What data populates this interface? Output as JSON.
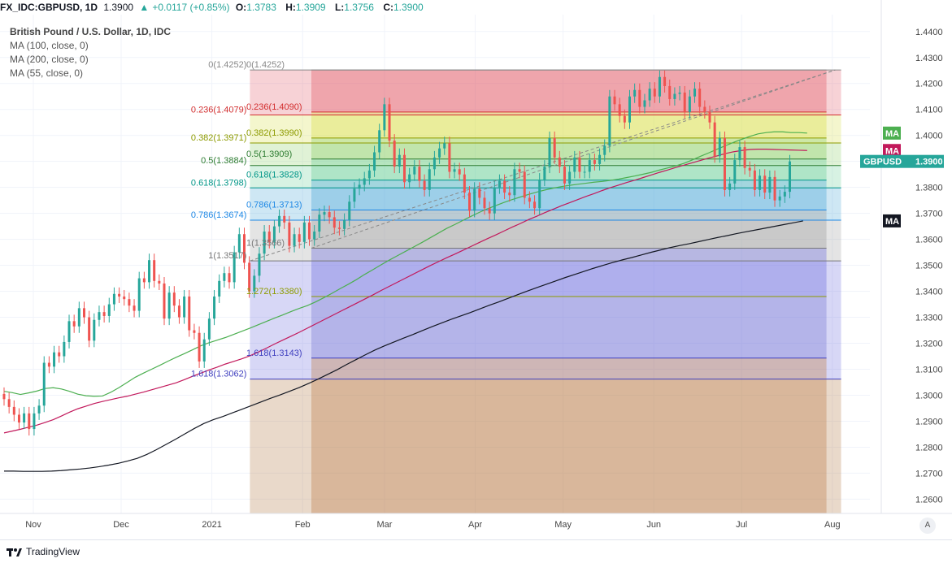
{
  "header": {
    "symbol": "FX_IDC:GBPUSD, 1D",
    "last": "1.3900",
    "change": "+0.0117 (+0.85%)",
    "open_label": "O:",
    "open": "1.3783",
    "high_label": "H:",
    "high": "1.3909",
    "low_label": "L:",
    "low": "1.3756",
    "close_label": "C:",
    "close": "1.3900"
  },
  "legend": {
    "title": "British Pound / U.S. Dollar, 1D, IDC",
    "ma100": "MA (100, close, 0)",
    "ma200": "MA (200, close, 0)",
    "ma55": "MA (55, close, 0)"
  },
  "footer": {
    "brand": "TradingView",
    "auto_label": "A"
  },
  "colors": {
    "up": "#26a69a",
    "down": "#ef5350",
    "ma55": "#4caf50",
    "ma100": "#c2185b",
    "ma200": "#131722"
  },
  "chart_data": {
    "type": "candlestick",
    "y_range": [
      1.2545,
      1.4465
    ],
    "x_range_days": [
      0,
      276
    ],
    "y_ticks": [
      "1.4400",
      "1.4300",
      "1.4200",
      "1.4100",
      "1.4000",
      "1.3900",
      "1.3800",
      "1.3700",
      "1.3600",
      "1.3500",
      "1.3400",
      "1.3300",
      "1.3200",
      "1.3100",
      "1.3000",
      "1.2900",
      "1.2800",
      "1.2700",
      "1.2600"
    ],
    "x_ticks": [
      {
        "label": "Nov",
        "day": 10
      },
      {
        "label": "Dec",
        "day": 40
      },
      {
        "label": "2021",
        "day": 71
      },
      {
        "label": "Feb",
        "day": 102
      },
      {
        "label": "Mar",
        "day": 130
      },
      {
        "label": "Apr",
        "day": 161
      },
      {
        "label": "May",
        "day": 191
      },
      {
        "label": "Jun",
        "day": 222
      },
      {
        "label": "Jul",
        "day": 252
      },
      {
        "label": "Aug",
        "day": 283
      }
    ],
    "price_badges": [
      {
        "label": "MA",
        "value": 1.4009,
        "color": "#4caf50"
      },
      {
        "label": "MA",
        "value": 1.3942,
        "color": "#c2185b"
      },
      {
        "label": "GBPUSD",
        "value": 1.39,
        "text": "1.3900",
        "color": "#26a69a"
      },
      {
        "label": "MA",
        "value": 1.3671,
        "color": "#131722"
      }
    ],
    "fib_left": {
      "x_start_day": 84,
      "x_end_day": 286,
      "levels": [
        {
          "label": "0(1.4252)",
          "value": 1.4252,
          "color": "#888888"
        },
        {
          "label": "0.236(1.4079)",
          "value": 1.4079,
          "color": "#d32f2f"
        },
        {
          "label": "0.382(1.3971)",
          "value": 1.3971,
          "color": "#8d9b00"
        },
        {
          "label": "0.5(1.3884)",
          "value": 1.3884,
          "color": "#2e7d32"
        },
        {
          "label": "0.618(1.3798)",
          "value": 1.3798,
          "color": "#009688"
        },
        {
          "label": "0.786(1.3674)",
          "value": 1.3674,
          "color": "#1e88e5"
        },
        {
          "label": "1(1.3517)",
          "value": 1.3517,
          "color": "#777777"
        },
        {
          "label": "1.618(1.3062)",
          "value": 1.3062,
          "color": "#3f3fbf"
        }
      ]
    },
    "fib_right": {
      "x_start_day": 105,
      "x_end_day": 281,
      "levels": [
        {
          "label": "0(1.4252)",
          "value": 1.4252,
          "color": "#888888"
        },
        {
          "label": "0.236(1.4090)",
          "value": 1.409,
          "color": "#d32f2f"
        },
        {
          "label": "0.382(1.3990)",
          "value": 1.399,
          "color": "#8d9b00"
        },
        {
          "label": "0.5(1.3909)",
          "value": 1.3909,
          "color": "#2e7d32"
        },
        {
          "label": "0.618(1.3828)",
          "value": 1.3828,
          "color": "#009688"
        },
        {
          "label": "0.786(1.3713)",
          "value": 1.3713,
          "color": "#1e88e5"
        },
        {
          "label": "1(1.3566)",
          "value": 1.3566,
          "color": "#777777"
        },
        {
          "label": "1.272(1.3380)",
          "value": 1.338,
          "color": "#8d9b00"
        },
        {
          "label": "1.618(1.3143)",
          "value": 1.3143,
          "color": "#3f3fbf"
        }
      ]
    },
    "trendlines": [
      {
        "p1": [
          84,
          1.3517
        ],
        "p2": [
          284,
          1.4252
        ]
      },
      {
        "p1": [
          105,
          1.3566
        ],
        "p2": [
          284,
          1.4252
        ]
      }
    ],
    "closes": [
      1.2985,
      1.2955,
      1.2925,
      1.2895,
      1.293,
      1.287,
      1.293,
      1.296,
      1.3125,
      1.311,
      1.3165,
      1.315,
      1.3205,
      1.3285,
      1.3265,
      1.3335,
      1.33,
      1.321,
      1.329,
      1.332,
      1.3305,
      1.335,
      1.339,
      1.338,
      1.337,
      1.3345,
      1.3325,
      1.345,
      1.3435,
      1.352,
      1.344,
      1.343,
      1.3295,
      1.3395,
      1.3345,
      1.33,
      1.338,
      1.325,
      1.324,
      1.313,
      1.3215,
      1.3295,
      1.338,
      1.344,
      1.347,
      1.3435,
      1.355,
      1.362,
      1.351,
      1.34,
      1.346,
      1.3545,
      1.363,
      1.359,
      1.365,
      1.369,
      1.3665,
      1.3575,
      1.362,
      1.359,
      1.3665,
      1.36,
      1.363,
      1.3695,
      1.3705,
      1.3685,
      1.3645,
      1.364,
      1.3675,
      1.3745,
      1.3795,
      1.381,
      1.3835,
      1.3865,
      1.3935,
      1.402,
      1.412,
      1.398,
      1.388,
      1.3925,
      1.382,
      1.385,
      1.388,
      1.3825,
      1.379,
      1.387,
      1.3915,
      1.395,
      1.397,
      1.386,
      1.387,
      1.385,
      1.378,
      1.371,
      1.3795,
      1.376,
      1.372,
      1.37,
      1.38,
      1.3825,
      1.378,
      1.377,
      1.387,
      1.386,
      1.376,
      1.3745,
      1.372,
      1.383,
      1.388,
      1.399,
      1.3915,
      1.388,
      1.3815,
      1.386,
      1.3915,
      1.386,
      1.386,
      1.3905,
      1.389,
      1.3925,
      1.396,
      1.415,
      1.412,
      1.4075,
      1.405,
      1.415,
      1.4175,
      1.411,
      1.4135,
      1.418,
      1.415,
      1.4225,
      1.419,
      1.414,
      1.416,
      1.4165,
      1.409,
      1.415,
      1.418,
      1.411,
      1.409,
      1.405,
      1.392,
      1.399,
      1.379,
      1.3815,
      1.3905,
      1.3955,
      1.3875,
      1.3865,
      1.379,
      1.3845,
      1.378,
      1.384,
      1.375,
      1.3765,
      1.3783,
      1.39
    ],
    "ma55": [
      1.3015,
      1.301,
      1.3003,
      1.3009,
      1.3016,
      1.3026,
      1.3029,
      1.3024,
      1.3015,
      1.3004,
      1.2998,
      1.2996,
      1.2997,
      1.3011,
      1.3029,
      1.3049,
      1.3069,
      1.3085,
      1.31,
      1.3115,
      1.3131,
      1.3146,
      1.316,
      1.3175,
      1.319,
      1.3202,
      1.3212,
      1.3222,
      1.3234,
      1.3246,
      1.3258,
      1.3271,
      1.3284,
      1.3297,
      1.3309,
      1.3322,
      1.3334,
      1.3345,
      1.3359,
      1.3375,
      1.3392,
      1.341,
      1.3427,
      1.3445,
      1.3465,
      1.3483,
      1.3502,
      1.352,
      1.3537,
      1.3554,
      1.3571,
      1.3588,
      1.3606,
      1.3624,
      1.3642,
      1.3657,
      1.3673,
      1.3689,
      1.3704,
      1.3718,
      1.373,
      1.3742,
      1.3753,
      1.3763,
      1.3773,
      1.3782,
      1.379,
      1.3797,
      1.3803,
      1.3808,
      1.3812,
      1.3816,
      1.382,
      1.3823,
      1.3827,
      1.3832,
      1.3838,
      1.3844,
      1.3851,
      1.3858,
      1.3867,
      1.3875,
      1.3883,
      1.3893,
      1.3906,
      1.392,
      1.3933,
      1.3947,
      1.396,
      1.3973,
      1.3985,
      1.3996,
      1.4006,
      1.4011,
      1.4014,
      1.4014,
      1.4011,
      1.4011,
      1.4009
    ],
    "ma100": [
      1.2855,
      1.2862,
      1.2869,
      1.2877,
      1.2885,
      1.2895,
      1.2906,
      1.292,
      1.2935,
      1.2948,
      1.2958,
      1.2968,
      1.2976,
      1.2983,
      1.299,
      1.2996,
      1.3004,
      1.3012,
      1.3021,
      1.303,
      1.3039,
      1.3048,
      1.306,
      1.3073,
      1.3085,
      1.3097,
      1.3108,
      1.312,
      1.313,
      1.314,
      1.3152,
      1.3166,
      1.3181,
      1.3197,
      1.3212,
      1.3227,
      1.3242,
      1.3258,
      1.3274,
      1.329,
      1.3306,
      1.3322,
      1.3338,
      1.3354,
      1.337,
      1.3386,
      1.3403,
      1.3419,
      1.3435,
      1.3451,
      1.3467,
      1.3483,
      1.3499,
      1.3514,
      1.3529,
      1.3543,
      1.3558,
      1.3573,
      1.3588,
      1.3603,
      1.3617,
      1.3632,
      1.3647,
      1.3661,
      1.3676,
      1.3689,
      1.3703,
      1.3716,
      1.3729,
      1.3741,
      1.3753,
      1.3765,
      1.3776,
      1.3788,
      1.3799,
      1.3809,
      1.3819,
      1.3828,
      1.3838,
      1.3848,
      1.3858,
      1.3867,
      1.3877,
      1.3886,
      1.3895,
      1.3904,
      1.3913,
      1.3921,
      1.393,
      1.3937,
      1.3942,
      1.3946,
      1.3947,
      1.3947,
      1.3946,
      1.3945,
      1.3944,
      1.3943,
      1.3942
    ],
    "ma200": [
      1.2708,
      1.2708,
      1.2707,
      1.2707,
      1.2707,
      1.2708,
      1.271,
      1.2713,
      1.2716,
      1.272,
      1.2725,
      1.2731,
      1.2738,
      1.2747,
      1.2757,
      1.2772,
      1.279,
      1.281,
      1.283,
      1.2851,
      1.2872,
      1.2891,
      1.2906,
      1.2918,
      1.2932,
      1.2946,
      1.296,
      1.2974,
      1.2988,
      1.3001,
      1.3015,
      1.3029,
      1.3045,
      1.3062,
      1.308,
      1.3098,
      1.3118,
      1.3137,
      1.3156,
      1.3174,
      1.319,
      1.3205,
      1.322,
      1.3234,
      1.3249,
      1.3264,
      1.3278,
      1.3292,
      1.3305,
      1.3318,
      1.3332,
      1.3346,
      1.3359,
      1.3373,
      1.3387,
      1.3401,
      1.3414,
      1.3427,
      1.344,
      1.3453,
      1.3465,
      1.3477,
      1.3489,
      1.35,
      1.3511,
      1.3521,
      1.353,
      1.354,
      1.355,
      1.3559,
      1.3568,
      1.3576,
      1.3583,
      1.3591,
      1.3599,
      1.3607,
      1.3614,
      1.3622,
      1.3629,
      1.3636,
      1.3643,
      1.365,
      1.3657,
      1.3664,
      1.3671
    ]
  }
}
